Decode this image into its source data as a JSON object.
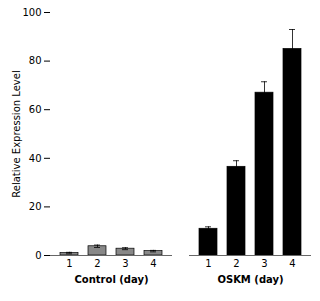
{
  "chart_data": {
    "type": "bar",
    "categories": [
      "1",
      "2",
      "3",
      "4"
    ],
    "series": [
      {
        "name": "Control (day)",
        "color": "#888888",
        "values": [
          1.0,
          3.8,
          2.8,
          1.8
        ],
        "errors": [
          0.3,
          0.5,
          0.4,
          0.3
        ]
      },
      {
        "name": "OSKM (day)",
        "color": "#000000",
        "values": [
          11.0,
          36.5,
          67.0,
          85.0
        ],
        "errors": [
          0.8,
          2.5,
          4.5,
          8.0
        ]
      }
    ],
    "ylabel": "Relative Expression Level",
    "ylim": [
      0,
      100
    ],
    "yticks": [
      0,
      20,
      40,
      60,
      80,
      100
    ]
  }
}
